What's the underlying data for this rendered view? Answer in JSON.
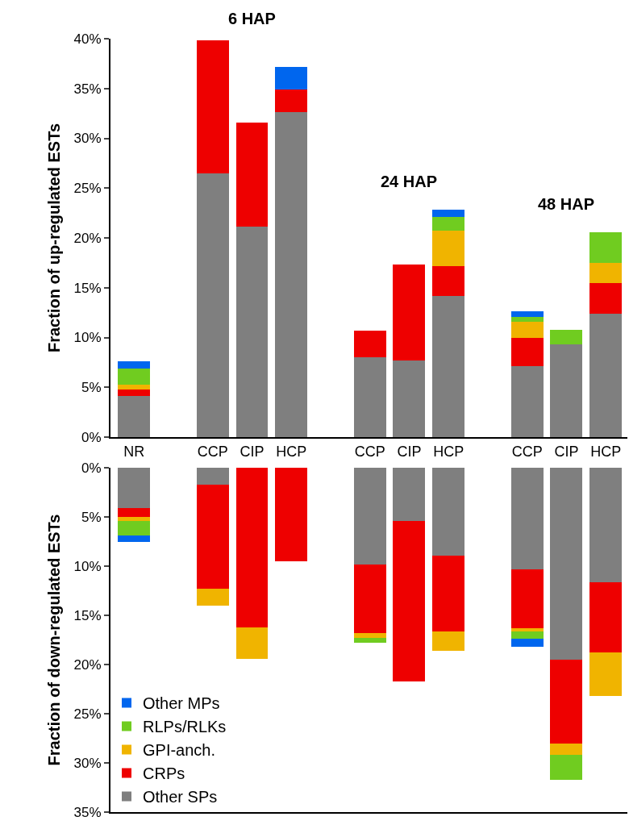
{
  "chart_data": [
    {
      "type": "bar",
      "stacked": true,
      "ylabel": "Fraction of up-regulated ESTs",
      "legend": false,
      "grid": false,
      "categories": [
        "NR",
        null,
        "CCP",
        "CIP",
        "HCP",
        null,
        "CCP",
        "CIP",
        "HCP",
        null,
        "CCP",
        "CIP",
        "HCP"
      ],
      "ylim": [
        0,
        40
      ],
      "yticks": [
        {
          "value": 0,
          "label": "0%"
        },
        {
          "value": 5,
          "label": "5%"
        },
        {
          "value": 10,
          "label": "10%"
        },
        {
          "value": 15,
          "label": "15%"
        },
        {
          "value": 20,
          "label": "20%"
        },
        {
          "value": 25,
          "label": "25%"
        },
        {
          "value": 30,
          "label": "30%"
        },
        {
          "value": 35,
          "label": "35%"
        },
        {
          "value": 40,
          "label": "40%"
        }
      ],
      "annotations": [
        "6 HAP",
        "24 HAP",
        "48 HAP"
      ],
      "series": [
        {
          "color": "#7f7f7f",
          "values": [
            4.1,
            null,
            26.5,
            21.1,
            32.6,
            null,
            8.0,
            7.7,
            14.2,
            null,
            7.1,
            9.3,
            12.4
          ]
        },
        {
          "color": "#ee0000",
          "values": [
            0.7,
            null,
            13.3,
            10.5,
            2.3,
            null,
            2.7,
            9.6,
            3.0,
            null,
            2.9,
            0,
            3.1
          ]
        },
        {
          "color": "#f0b400",
          "values": [
            0.5,
            null,
            0,
            0,
            0,
            null,
            0,
            0,
            3.5,
            null,
            1.6,
            0,
            2.0
          ]
        },
        {
          "color": "#70cc20",
          "values": [
            1.6,
            null,
            0,
            0,
            0,
            null,
            0,
            0,
            1.4,
            null,
            0.5,
            1.5,
            3.1
          ]
        },
        {
          "color": "#0066ee",
          "values": [
            0.7,
            null,
            0,
            0,
            2.3,
            null,
            0,
            0,
            0.7,
            null,
            0.5,
            0,
            0
          ]
        }
      ]
    },
    {
      "type": "bar",
      "stacked": true,
      "ylabel": "Fraction of down-regulated ESTs",
      "legend": "bottom left",
      "grid": false,
      "tick_labels": "y",
      "categories": [
        null,
        null,
        null,
        null,
        null,
        null,
        null,
        null,
        null,
        null,
        null,
        null,
        null
      ],
      "ylim": [
        35,
        0
      ],
      "yticks": [
        {
          "value": 0,
          "label": "0%"
        },
        {
          "value": 5,
          "label": "5%"
        },
        {
          "value": 10,
          "label": "10%"
        },
        {
          "value": 15,
          "label": "15%"
        },
        {
          "value": 20,
          "label": "20%"
        },
        {
          "value": 25,
          "label": "25%"
        },
        {
          "value": 30,
          "label": "30%"
        },
        {
          "value": 35,
          "label": "35%"
        }
      ],
      "series": [
        {
          "name": "Other SPs",
          "color": "#7f7f7f",
          "values": [
            4.1,
            null,
            1.7,
            0,
            0,
            null,
            9.8,
            5.4,
            8.9,
            null,
            10.3,
            19.5,
            11.6
          ]
        },
        {
          "name": "CRPs",
          "color": "#ee0000",
          "values": [
            0.9,
            null,
            10.6,
            16.2,
            9.5,
            null,
            7.0,
            16.3,
            7.7,
            null,
            6.0,
            8.5,
            7.2
          ]
        },
        {
          "name": "GPI-anch.",
          "color": "#f0b400",
          "values": [
            0.4,
            null,
            1.7,
            3.2,
            0,
            null,
            0.5,
            0,
            2.0,
            null,
            0.3,
            1.2,
            4.4
          ]
        },
        {
          "name": "RLPs/RLKs",
          "color": "#70cc20",
          "values": [
            1.5,
            null,
            0,
            0,
            0,
            null,
            0.5,
            0,
            0,
            null,
            0.8,
            2.5,
            0
          ]
        },
        {
          "name": "Other MPs",
          "color": "#0066ee",
          "values": [
            0.6,
            null,
            0,
            0,
            0,
            null,
            0,
            0,
            0,
            null,
            0.8,
            0,
            0
          ]
        }
      ]
    }
  ]
}
